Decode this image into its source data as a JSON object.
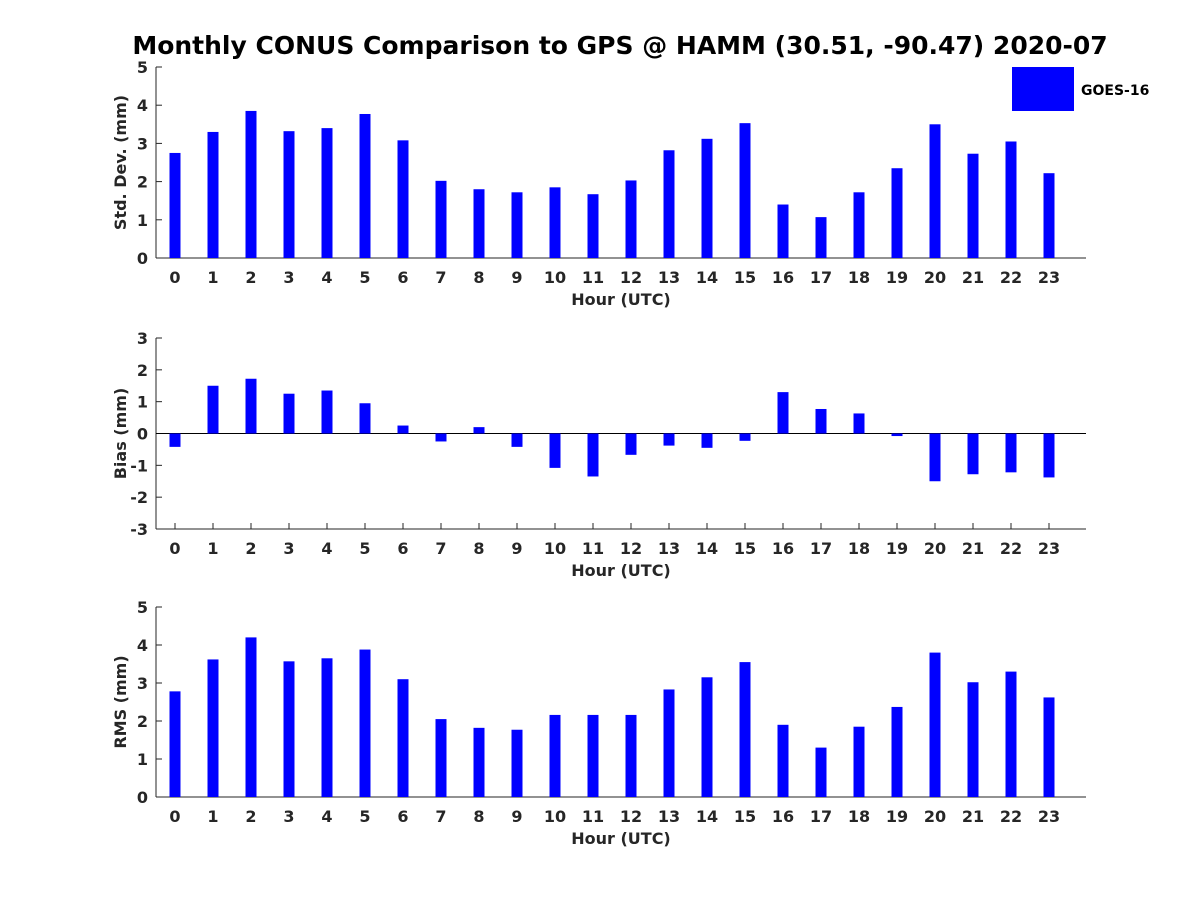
{
  "figure": {
    "title": "Monthly CONUS Comparison to GPS @ HAMM (30.51, -90.47) 2020-07",
    "legend": {
      "label": "GOES-16",
      "color": "#0000ff",
      "position": "top-right"
    }
  },
  "chart_data": [
    {
      "type": "bar",
      "ylabel": "Std. Dev. (mm)",
      "xlabel": "Hour (UTC)",
      "ylim": [
        0,
        5
      ],
      "yticks": [
        0,
        1,
        2,
        3,
        4,
        5
      ],
      "categories": [
        "0",
        "1",
        "2",
        "3",
        "4",
        "5",
        "6",
        "7",
        "8",
        "9",
        "10",
        "11",
        "12",
        "13",
        "14",
        "15",
        "16",
        "17",
        "18",
        "19",
        "20",
        "21",
        "22",
        "23"
      ],
      "series": [
        {
          "name": "GOES-16",
          "color": "#0000ff",
          "values": [
            2.75,
            3.3,
            3.85,
            3.32,
            3.4,
            3.77,
            3.08,
            2.02,
            1.8,
            1.72,
            1.85,
            1.67,
            2.03,
            2.82,
            3.12,
            3.53,
            1.4,
            1.07,
            1.72,
            2.35,
            3.5,
            2.73,
            3.05,
            2.22
          ]
        }
      ]
    },
    {
      "type": "bar",
      "ylabel": "Bias (mm)",
      "xlabel": "Hour (UTC)",
      "ylim": [
        -3,
        3
      ],
      "yticks": [
        -3,
        -2,
        -1,
        0,
        1,
        2,
        3
      ],
      "categories": [
        "0",
        "1",
        "2",
        "3",
        "4",
        "5",
        "6",
        "7",
        "8",
        "9",
        "10",
        "11",
        "12",
        "13",
        "14",
        "15",
        "16",
        "17",
        "18",
        "19",
        "20",
        "21",
        "22",
        "23"
      ],
      "series": [
        {
          "name": "GOES-16",
          "color": "#0000ff",
          "values": [
            -0.42,
            1.5,
            1.72,
            1.25,
            1.35,
            0.95,
            0.25,
            -0.25,
            0.2,
            -0.42,
            -1.08,
            -1.35,
            -0.67,
            -0.38,
            -0.45,
            -0.23,
            1.3,
            0.77,
            0.63,
            -0.08,
            -1.5,
            -1.28,
            -1.22,
            -1.38
          ]
        }
      ]
    },
    {
      "type": "bar",
      "ylabel": "RMS (mm)",
      "xlabel": "Hour (UTC)",
      "ylim": [
        0,
        5
      ],
      "yticks": [
        0,
        1,
        2,
        3,
        4,
        5
      ],
      "categories": [
        "0",
        "1",
        "2",
        "3",
        "4",
        "5",
        "6",
        "7",
        "8",
        "9",
        "10",
        "11",
        "12",
        "13",
        "14",
        "15",
        "16",
        "17",
        "18",
        "19",
        "20",
        "21",
        "22",
        "23"
      ],
      "series": [
        {
          "name": "GOES-16",
          "color": "#0000ff",
          "values": [
            2.78,
            3.62,
            4.2,
            3.57,
            3.65,
            3.88,
            3.1,
            2.05,
            1.82,
            1.77,
            2.16,
            2.16,
            2.16,
            2.83,
            3.15,
            3.55,
            1.9,
            1.3,
            1.85,
            2.37,
            3.8,
            3.02,
            3.3,
            2.62
          ]
        }
      ]
    }
  ]
}
